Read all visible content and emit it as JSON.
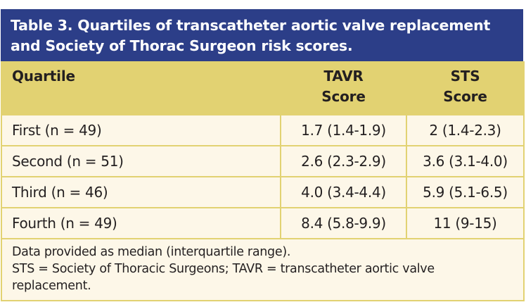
{
  "table": {
    "title": "Table 3. Quartiles of transcatheter aortic valve replacement and Society of Thorac Surgeon risk scores.",
    "title_lines": [
      "Table 3. Quartiles of transcatheter aortic valve replacement",
      "and Society of Thorac Surgeon risk scores."
    ],
    "columns": [
      {
        "line1": "Quartile",
        "line2": ""
      },
      {
        "line1": "TAVR",
        "line2": "Score"
      },
      {
        "line1": "STS",
        "line2": "Score"
      }
    ],
    "rows": [
      {
        "quartile": "First (n = 49)",
        "tavr": "1.7 (1.4-1.9)",
        "sts": "2 (1.4-2.3)"
      },
      {
        "quartile": "Second (n = 51)",
        "tavr": "2.6 (2.3-2.9)",
        "sts": "3.6 (3.1-4.0)"
      },
      {
        "quartile": "Third (n = 46)",
        "tavr": "4.0 (3.4-4.4)",
        "sts": "5.9 (5.1-6.5)"
      },
      {
        "quartile": "Fourth (n = 49)",
        "tavr": "8.4 (5.8-9.9)",
        "sts": "11 (9-15)"
      }
    ],
    "footnotes": [
      "Data provided as median (interquartile range).",
      "STS = Society of Thoracic Surgeons; TAVR = transcatheter aortic valve replacement."
    ]
  },
  "colors": {
    "title_bg": "#2c3e88",
    "title_text": "#ffffff",
    "header_bg": "#e2d272",
    "body_bg": "#fdf7e8",
    "border": "#e2d272",
    "text": "#231f20"
  }
}
